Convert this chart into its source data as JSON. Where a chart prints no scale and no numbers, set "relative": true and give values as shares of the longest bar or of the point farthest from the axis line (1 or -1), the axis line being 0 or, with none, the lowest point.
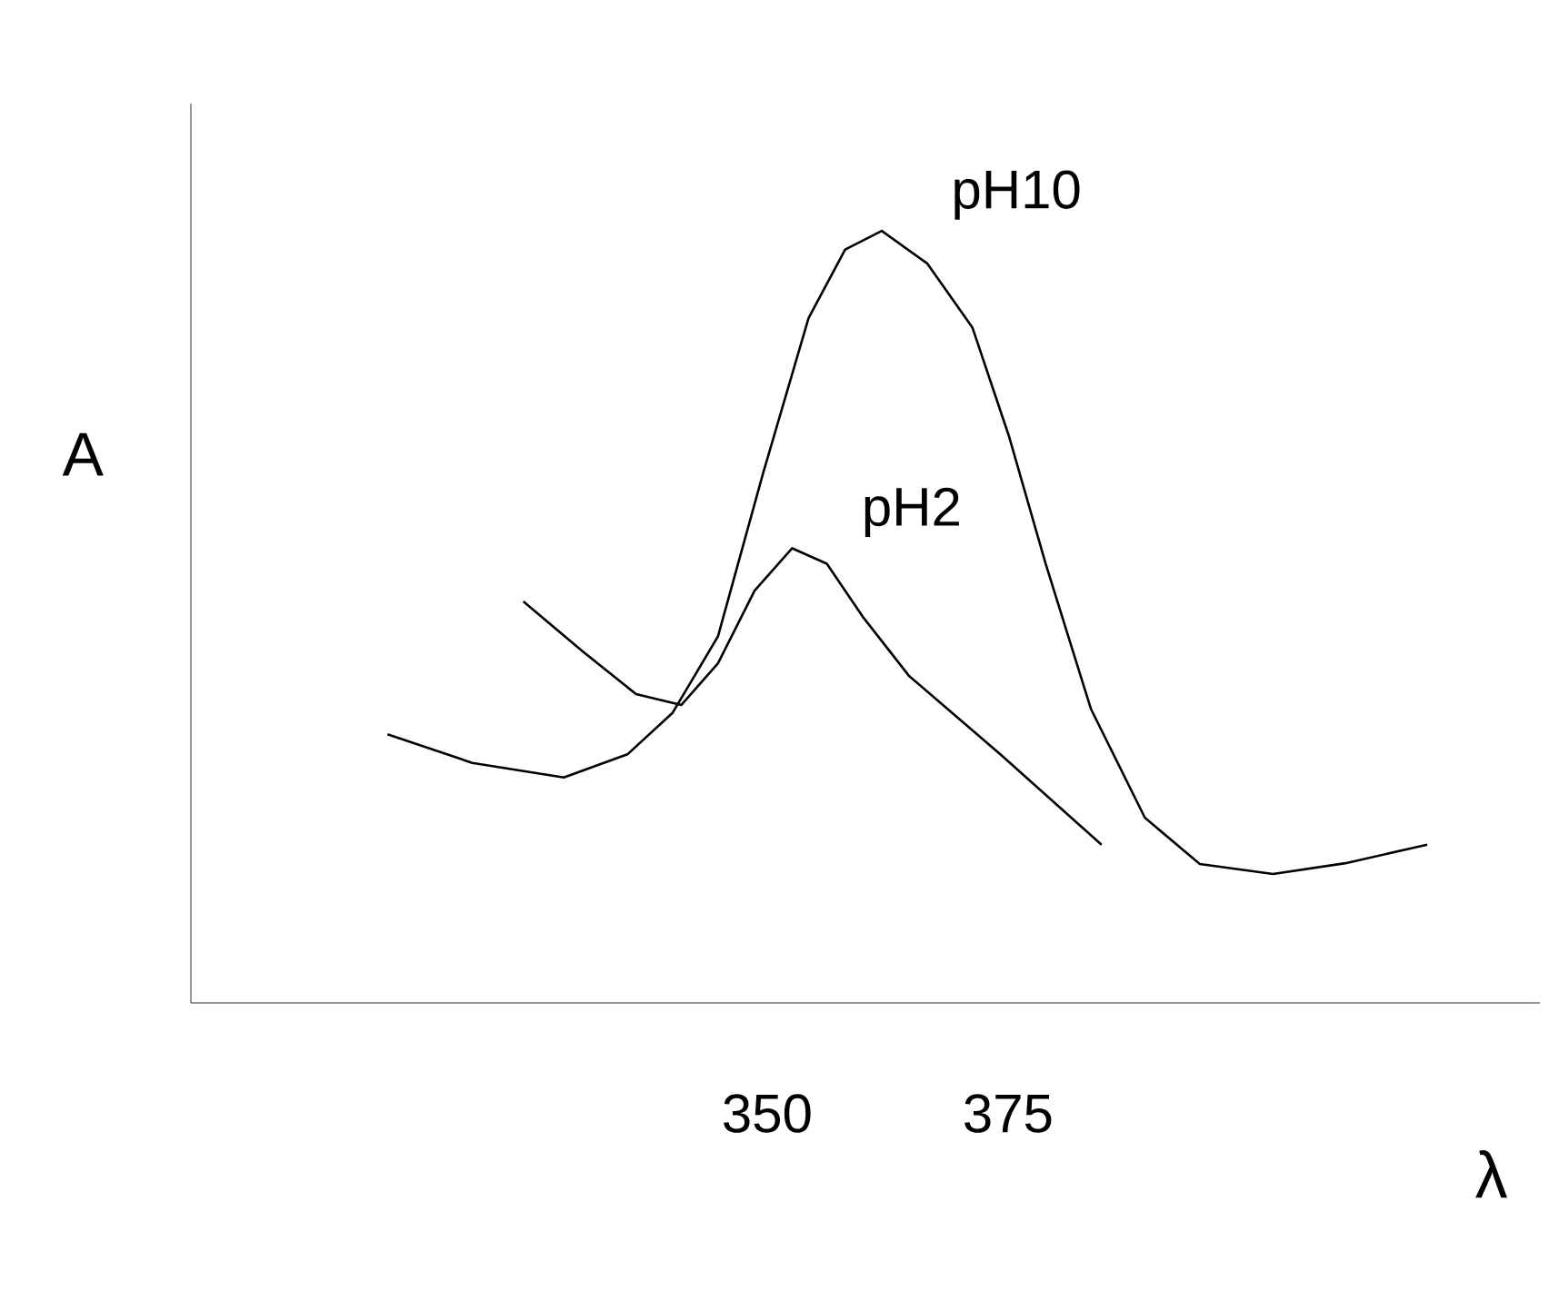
{
  "chart_data": {
    "type": "line",
    "xlabel": "λ",
    "ylabel": "A",
    "relative": true,
    "xlim": [
      290.2,
      430.2
    ],
    "xticks": [
      350,
      375
    ],
    "series": [
      {
        "name": "pH10",
        "color": "#000000",
        "x": [
          310.6,
          319.4,
          328.9,
          335.5,
          340.2,
          344.9,
          349.6,
          354.3,
          358.1,
          361.9,
          366.6,
          371.3,
          375.1,
          378.9,
          383.6,
          389.2,
          394.9,
          402.5,
          410.0,
          418.5
        ],
        "values": [
          0.348,
          0.311,
          0.292,
          0.322,
          0.376,
          0.475,
          0.687,
          0.887,
          0.976,
          1.0,
          0.958,
          0.875,
          0.734,
          0.569,
          0.381,
          0.24,
          0.18,
          0.167,
          0.181,
          0.205
        ]
      },
      {
        "name": "pH2",
        "color": "#000000",
        "x": [
          324.7,
          330.8,
          336.4,
          341.1,
          344.9,
          348.7,
          352.6,
          356.2,
          360.0,
          364.7,
          374.2,
          384.7
        ],
        "values": [
          0.52,
          0.456,
          0.4,
          0.386,
          0.44,
          0.534,
          0.589,
          0.569,
          0.499,
          0.424,
          0.322,
          0.205
        ]
      }
    ],
    "grid": false,
    "legend": false,
    "marker": "none",
    "line_style": "solid"
  }
}
